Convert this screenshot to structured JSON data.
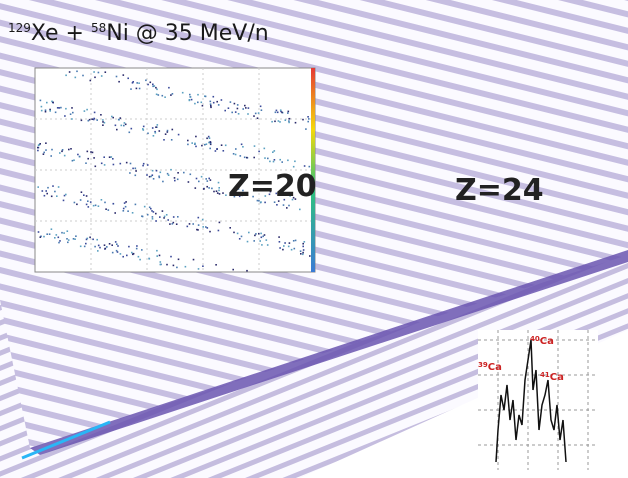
{
  "title": {
    "mass1": "129",
    "el1": "Xe + ",
    "mass2": "58",
    "el2": "Ni @ 35 MeV/n"
  },
  "labels": {
    "z20": "Z=20",
    "z24": "Z=24"
  },
  "isotopes": [
    {
      "mass": "39",
      "el": "Ca"
    },
    {
      "mass": "40",
      "el": "Ca"
    },
    {
      "mass": "41",
      "el": "Ca"
    }
  ]
}
